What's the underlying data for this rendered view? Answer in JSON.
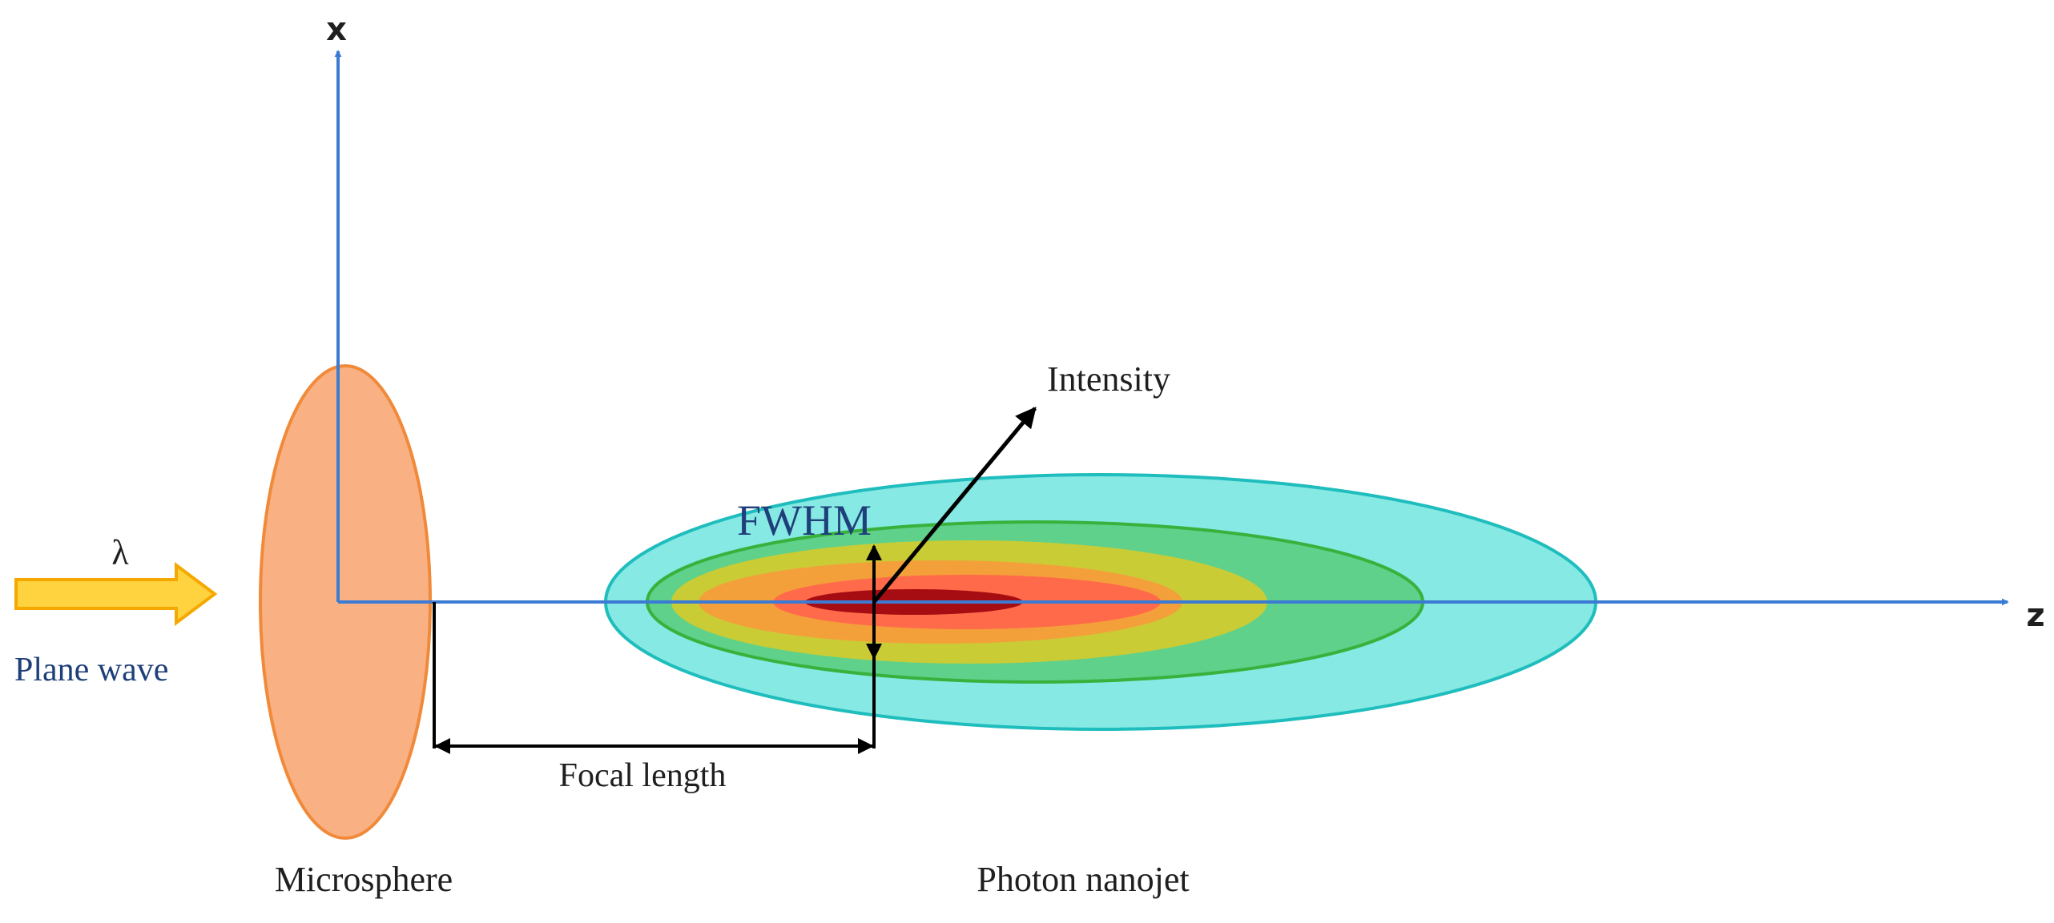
{
  "labels": {
    "x_axis": "x",
    "z_axis": "z",
    "wavelength": "λ",
    "plane_wave": "Plane wave",
    "microsphere": "Microsphere",
    "photon_nanojet": "Photon nanojet",
    "focal_length": "Focal length",
    "fwhm": "FWHM",
    "intensity": "Intensity"
  },
  "colors": {
    "axis": "#3b7bd4",
    "arrow_fill": "#ffd23f",
    "arrow_stroke": "#f5a800",
    "microsphere_fill": "#f9b183",
    "microsphere_stroke": "#f08a3a",
    "jet_cyan": "#86e9e3",
    "jet_cyan_stroke": "#1fbdbd",
    "jet_green": "#5fd18a",
    "jet_green_stroke": "#38b23c",
    "jet_yellow": "#c9cc35",
    "jet_orange": "#f4a03a",
    "jet_red": "#ff6a4a",
    "jet_core": "#a50d12",
    "plane_wave_text": "#1f3f7a",
    "fwhm_text": "#1f3f7a",
    "dimension_lines": "#000000"
  }
}
